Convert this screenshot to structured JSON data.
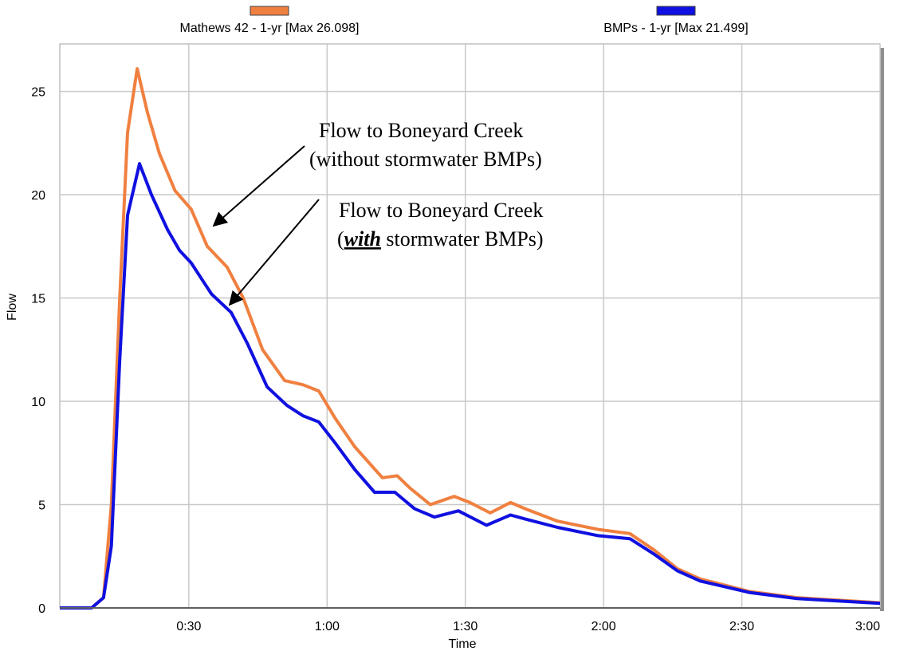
{
  "chart_data": {
    "type": "line",
    "x_label": "Time",
    "y_label": "Flow",
    "xlim": [
      2,
      180
    ],
    "ylim": [
      0,
      27.3
    ],
    "xticks": [
      {
        "value": 30,
        "label": "0:30"
      },
      {
        "value": 60,
        "label": "1:00"
      },
      {
        "value": 90,
        "label": "1:30"
      },
      {
        "value": 120,
        "label": "2:00"
      },
      {
        "value": 150,
        "label": "2:30"
      },
      {
        "value": 180,
        "label": "3:00"
      }
    ],
    "yticks": [
      0,
      5,
      10,
      15,
      20,
      25
    ],
    "grid": true,
    "legend": "top",
    "series": [
      {
        "name": "Mathews 42 - 1-yr [Max 26.098]",
        "color": "#f08040",
        "x": [
          2,
          8.9,
          11.5,
          13.2,
          15,
          16.7,
          18.8,
          21,
          23.6,
          27,
          30.5,
          34,
          38.3,
          41.8,
          46,
          50.8,
          54.8,
          58.2,
          61.7,
          66,
          72,
          75.2,
          78,
          82.4,
          87.6,
          91,
          95.4,
          99.8,
          103,
          110,
          118.8,
          125.7,
          131,
          136,
          141,
          151.6,
          162,
          180
        ],
        "values": [
          0,
          0,
          0.5,
          5,
          15,
          23,
          26.1,
          24,
          22,
          20.2,
          19.3,
          17.5,
          16.5,
          15,
          12.5,
          11,
          10.8,
          10.5,
          9.2,
          7.8,
          6.3,
          6.4,
          5.8,
          5,
          5.4,
          5.1,
          4.6,
          5.1,
          4.8,
          4.2,
          3.8,
          3.6,
          2.8,
          1.9,
          1.4,
          0.8,
          0.5,
          0.25
        ]
      },
      {
        "name": "BMPs - 1-yr [Max 21.499]",
        "color": "#1010e0",
        "x": [
          2,
          8.9,
          11.5,
          13.2,
          15,
          16.7,
          19.3,
          21.9,
          25.4,
          28,
          30.5,
          34.9,
          39.2,
          42.7,
          47,
          51.3,
          54.8,
          58.2,
          61.7,
          66,
          70.3,
          74.7,
          79,
          83.3,
          88.5,
          94.6,
          99.8,
          103,
          110,
          118.8,
          125.7,
          131,
          136,
          141,
          151.6,
          162,
          180
        ],
        "values": [
          0,
          0,
          0.5,
          3,
          12,
          19,
          21.5,
          20,
          18.3,
          17.3,
          16.7,
          15.2,
          14.3,
          12.8,
          10.7,
          9.8,
          9.3,
          9,
          8,
          6.7,
          5.6,
          5.6,
          4.8,
          4.4,
          4.7,
          4,
          4.5,
          4.3,
          3.9,
          3.5,
          3.35,
          2.6,
          1.8,
          1.3,
          0.75,
          0.45,
          0.22
        ]
      }
    ],
    "annotations": [
      {
        "line1": "Flow to Boneyard Creek",
        "line2": "(without stormwater BMPs)"
      },
      {
        "line1": "Flow to Boneyard Creek",
        "line2_before": "(",
        "line2_emphasis": "with",
        "line2_after": " stormwater BMPs)"
      }
    ]
  }
}
